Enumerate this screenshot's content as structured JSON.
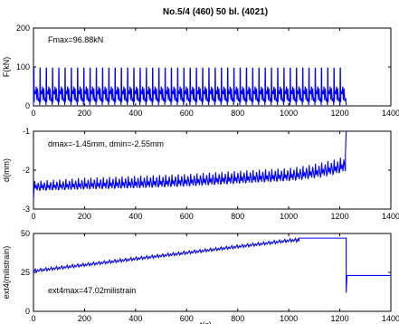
{
  "figure": {
    "title": "No.5/4  (460)  50 bl.  (4021)"
  },
  "chart_data": [
    {
      "type": "line",
      "ylabel": "F(kN)",
      "xlabel": "",
      "xlim": [
        0,
        1400
      ],
      "ylim": [
        0,
        200
      ],
      "xticks": [
        0,
        200,
        400,
        600,
        800,
        1000,
        1200,
        1400
      ],
      "yticks": [
        0,
        100,
        200
      ],
      "annotation": "Fmax=96.88kN",
      "color": "#0000ff",
      "series": [
        {
          "cycle_count": 50,
          "x_start": 0,
          "x_end": 1225,
          "max": [
            96.88,
            96.88
          ],
          "min": [
            2,
            2
          ],
          "inner_level": [
            40,
            40
          ]
        }
      ]
    },
    {
      "type": "line",
      "ylabel": "d(mm)",
      "xlabel": "",
      "xlim": [
        0,
        1400
      ],
      "ylim": [
        -3,
        -1
      ],
      "xticks": [
        0,
        200,
        400,
        600,
        800,
        1000,
        1200,
        1400
      ],
      "yticks": [
        -3,
        -2,
        -1
      ],
      "annotation": "dmax=-1.45mm, dmin=-2.55mm",
      "color": "#0000ff",
      "series": [
        {
          "cycle_count": 50,
          "x_start": 0,
          "x_end": 1225,
          "upper": [
            [
              0,
              -2.28
            ],
            [
              200,
              -2.2
            ],
            [
              400,
              -2.15
            ],
            [
              600,
              -2.1
            ],
            [
              800,
              -2.02
            ],
            [
              1000,
              -1.95
            ],
            [
              1100,
              -1.85
            ],
            [
              1200,
              -1.7
            ],
            [
              1222,
              -1.6
            ]
          ],
          "lower": [
            [
              0,
              -2.52
            ],
            [
              200,
              -2.48
            ],
            [
              400,
              -2.45
            ],
            [
              600,
              -2.4
            ],
            [
              800,
              -2.33
            ],
            [
              1000,
              -2.26
            ],
            [
              1100,
              -2.18
            ],
            [
              1200,
              -2.05
            ],
            [
              1222,
              -1.95
            ]
          ],
          "spike": [
            [
              1222,
              -1.6
            ],
            [
              1225,
              -1.0
            ]
          ]
        }
      ]
    },
    {
      "type": "line",
      "ylabel": "ext4(milistrain)",
      "xlabel": "t(s)",
      "xlim": [
        0,
        1400
      ],
      "ylim": [
        0,
        50
      ],
      "xticks": [
        0,
        200,
        400,
        600,
        800,
        1000,
        1200,
        1400
      ],
      "yticks": [
        0,
        25,
        50
      ],
      "annotation": "ext4max=47.02milistrain",
      "color": "#0000ff",
      "series": [
        {
          "cycle_count": 50,
          "trend_upper": [
            [
              0,
              27
            ],
            [
              1000,
              46.5
            ],
            [
              1040,
              47.02
            ]
          ],
          "trend_lower": [
            [
              0,
              25
            ],
            [
              1000,
              44.5
            ]
          ],
          "plateau": [
            [
              1040,
              47.02
            ],
            [
              1225,
              47.02
            ]
          ],
          "drop": [
            [
              1225,
              47.02
            ],
            [
              1225,
              12
            ],
            [
              1228,
              23
            ],
            [
              1400,
              23
            ]
          ]
        }
      ]
    }
  ]
}
